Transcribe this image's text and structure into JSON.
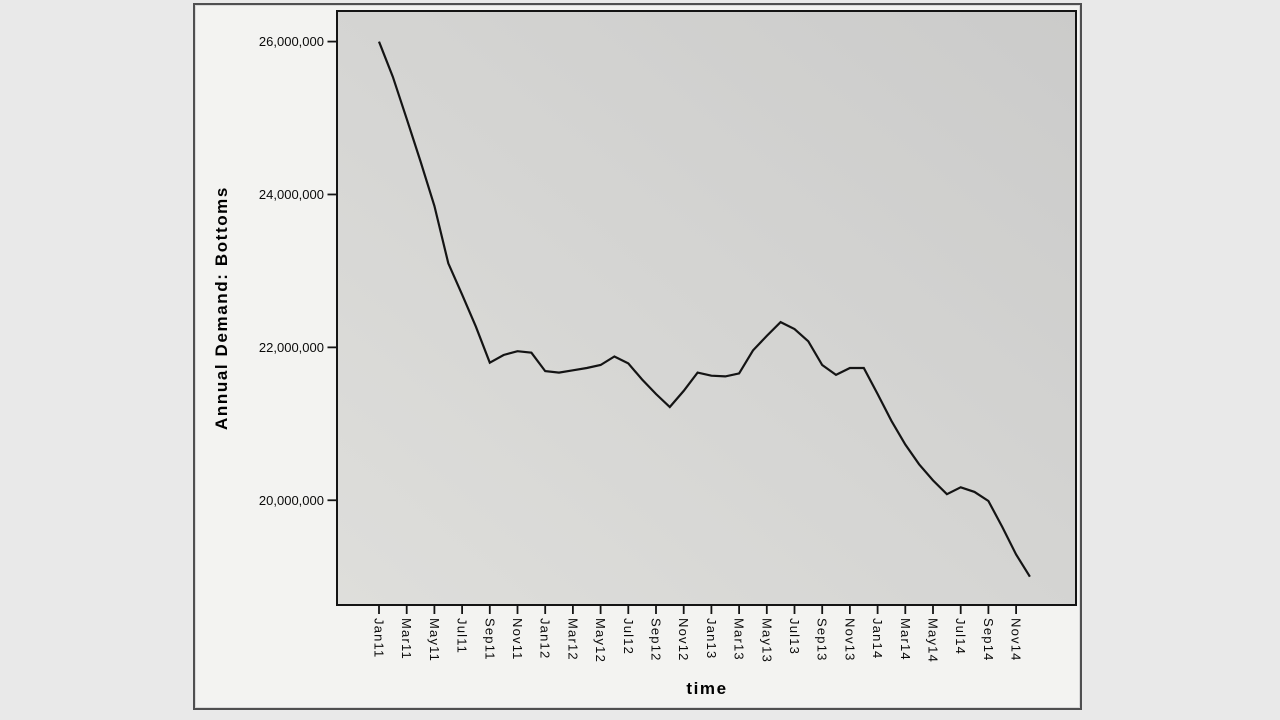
{
  "page": {
    "background": "#e9e9e9"
  },
  "frame": {
    "background": "#f3f3f1",
    "border_color": "#4f4f50"
  },
  "chart_data": {
    "type": "line",
    "title": "",
    "xlabel": "time",
    "ylabel": "Annual Demand: Bottoms",
    "x_frequency": "monthly",
    "x_range": "Jan 2011 - Dec 2014",
    "categories": [
      "Jan11",
      "Feb11",
      "Mar11",
      "Apr11",
      "May11",
      "Jun11",
      "Jul11",
      "Aug11",
      "Sep11",
      "Oct11",
      "Nov11",
      "Dec11",
      "Jan12",
      "Feb12",
      "Mar12",
      "Apr12",
      "May12",
      "Jun12",
      "Jul12",
      "Aug12",
      "Sep12",
      "Oct12",
      "Nov12",
      "Dec12",
      "Jan13",
      "Feb13",
      "Mar13",
      "Apr13",
      "May13",
      "Jun13",
      "Jul13",
      "Aug13",
      "Sep13",
      "Oct13",
      "Nov13",
      "Dec13",
      "Jan14",
      "Feb14",
      "Mar14",
      "Apr14",
      "May14",
      "Jun14",
      "Jul14",
      "Aug14",
      "Sep14",
      "Oct14",
      "Nov14",
      "Dec14"
    ],
    "x_tick_every": 2,
    "x_tick_labels": [
      "Jan11",
      "Mar11",
      "May11",
      "Jul11",
      "Sep11",
      "Nov11",
      "Jan12",
      "Mar12",
      "May12",
      "Jul12",
      "Sep12",
      "Nov12",
      "Jan13",
      "Mar13",
      "May13",
      "Jul13",
      "Sep13",
      "Nov13",
      "Jan14",
      "Mar14",
      "May14",
      "Jul14",
      "Sep14",
      "Nov14"
    ],
    "series": [
      {
        "name": "Annual Demand: Bottoms",
        "values": [
          26000000,
          25540000,
          24990000,
          24430000,
          23850000,
          23100000,
          22690000,
          22270000,
          21800000,
          21900000,
          21950000,
          21930000,
          21690000,
          21670000,
          21700000,
          21730000,
          21770000,
          21880000,
          21790000,
          21580000,
          21390000,
          21220000,
          21430000,
          21670000,
          21630000,
          21620000,
          21660000,
          21960000,
          22150000,
          22330000,
          22240000,
          22080000,
          21770000,
          21640000,
          21730000,
          21730000,
          21390000,
          21040000,
          20730000,
          20470000,
          20260000,
          20080000,
          20170000,
          20110000,
          19990000,
          19650000,
          19290000,
          19000000
        ]
      }
    ],
    "y_ticks": [
      26000000,
      24000000,
      22000000,
      20000000
    ],
    "y_tick_labels": [
      "26,000,000",
      "24,000,000",
      "22,000,000",
      "20,000,000"
    ],
    "ylim": [
      18630000,
      26400000
    ],
    "grid": false,
    "legend": false,
    "line_color": "#141414",
    "plot_fill_from": "#cbcbca",
    "plot_fill_to": "#dededb",
    "text_color": "#000000"
  }
}
